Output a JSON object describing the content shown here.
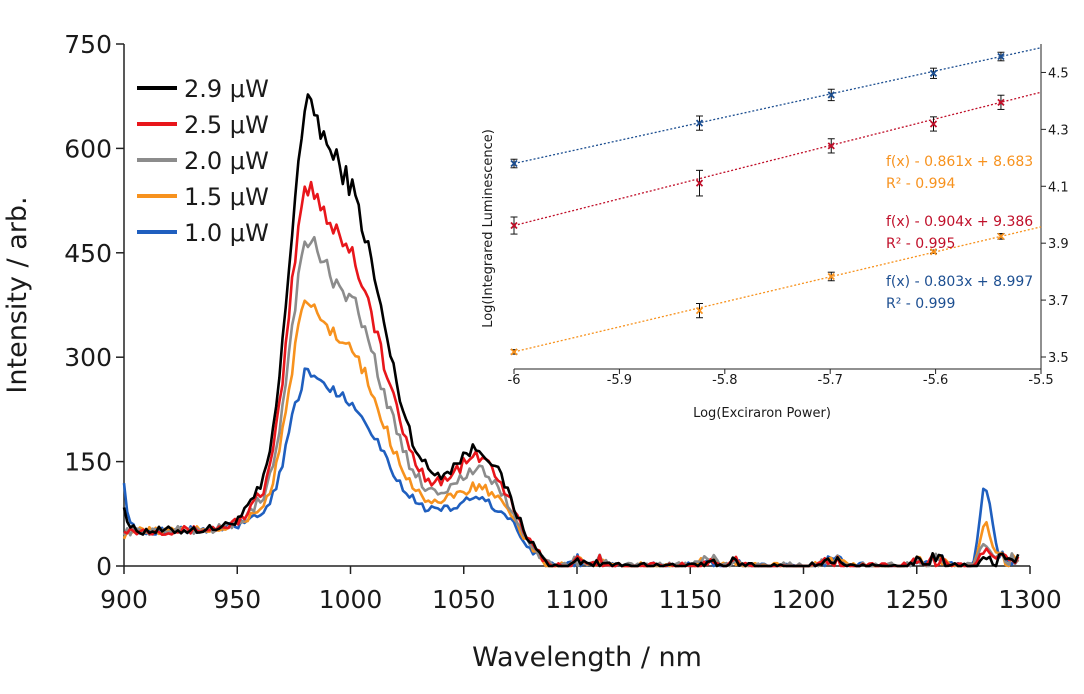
{
  "chart_data": [
    {
      "type": "line",
      "id": "main",
      "title": "",
      "xlabel": "Wavelength / nm",
      "ylabel": "Intensity / arb.",
      "xlim": [
        900,
        1300
      ],
      "ylim": [
        0,
        750
      ],
      "xticks": [
        900,
        950,
        1000,
        1050,
        1100,
        1150,
        1200,
        1250,
        1300
      ],
      "yticks": [
        0,
        150,
        300,
        450,
        600,
        750
      ],
      "legend_position": "top-left",
      "grid": false,
      "series": [
        {
          "name": "2.9 μW",
          "color": "#000000",
          "peak": 715,
          "shoulder": 600,
          "secondary": 165,
          "edge_start": 100,
          "tail_1280": 12
        },
        {
          "name": "2.5 μW",
          "color": "#e8161b",
          "peak": 585,
          "shoulder": 490,
          "secondary": 150,
          "edge_start": 65,
          "tail_1280": 22
        },
        {
          "name": "2.0 μW",
          "color": "#8c8c8c",
          "peak": 490,
          "shoulder": 410,
          "secondary": 125,
          "edge_start": 60,
          "tail_1280": 30
        },
        {
          "name": "1.5 μW",
          "color": "#f7921e",
          "peak": 388,
          "shoulder": 320,
          "secondary": 95,
          "edge_start": 55,
          "tail_1280": 60
        },
        {
          "name": "1.0 μW",
          "color": "#1f5fbf",
          "peak": 275,
          "shoulder": 235,
          "secondary": 72,
          "edge_start": 135,
          "tail_1280": 110
        }
      ]
    },
    {
      "type": "scatter",
      "id": "inset",
      "xlabel": "Log(Exciraron Power)",
      "ylabel": "Log(Integrared Luminescence)",
      "xlim": [
        -6,
        -5.5
      ],
      "ylim": [
        3.5,
        4.6
      ],
      "xticks": [
        -6,
        -5.9,
        -5.8,
        -5.7,
        -5.6,
        -5.5
      ],
      "xtick_labels": [
        "-6",
        "-5.9",
        "-5.8",
        "-5.7",
        "-5.6",
        "-5.5"
      ],
      "yticks": [
        3.5,
        3.7,
        3.9,
        4.1,
        4.3,
        4.5
      ],
      "ytick_labels": [
        "3.5",
        "3.7",
        "3.9",
        "4.1",
        "4.3",
        "4.5"
      ],
      "x": [
        -6,
        -5.824,
        -5.699,
        -5.602,
        -5.538
      ],
      "series": [
        {
          "name": "orange",
          "color": "#f7921e",
          "values": [
            3.518,
            3.663,
            3.783,
            3.87,
            3.924
          ],
          "errors": [
            0.008,
            0.025,
            0.015,
            0.006,
            0.01
          ],
          "fit": "f(x) - 0.861x + 8.683",
          "r2": "R² - 0.994",
          "slope": 0.861,
          "intercept": 8.683
        },
        {
          "name": "red",
          "color": "#c0102a",
          "values": [
            3.962,
            4.111,
            4.242,
            4.319,
            4.395
          ],
          "errors": [
            0.03,
            0.045,
            0.025,
            0.025,
            0.025
          ],
          "fit": "f(x) - 0.904x + 9.386",
          "r2": "R² - 0.995",
          "slope": 0.904,
          "intercept": 9.386
        },
        {
          "name": "blue",
          "color": "#1d4f91",
          "values": [
            4.18,
            4.322,
            4.421,
            4.497,
            4.556
          ],
          "errors": [
            0.015,
            0.025,
            0.02,
            0.018,
            0.015
          ],
          "fit": "f(x) - 0.803x + 8.997",
          "r2": "R² - 0.999",
          "slope": 0.803,
          "intercept": 8.997
        }
      ]
    }
  ]
}
